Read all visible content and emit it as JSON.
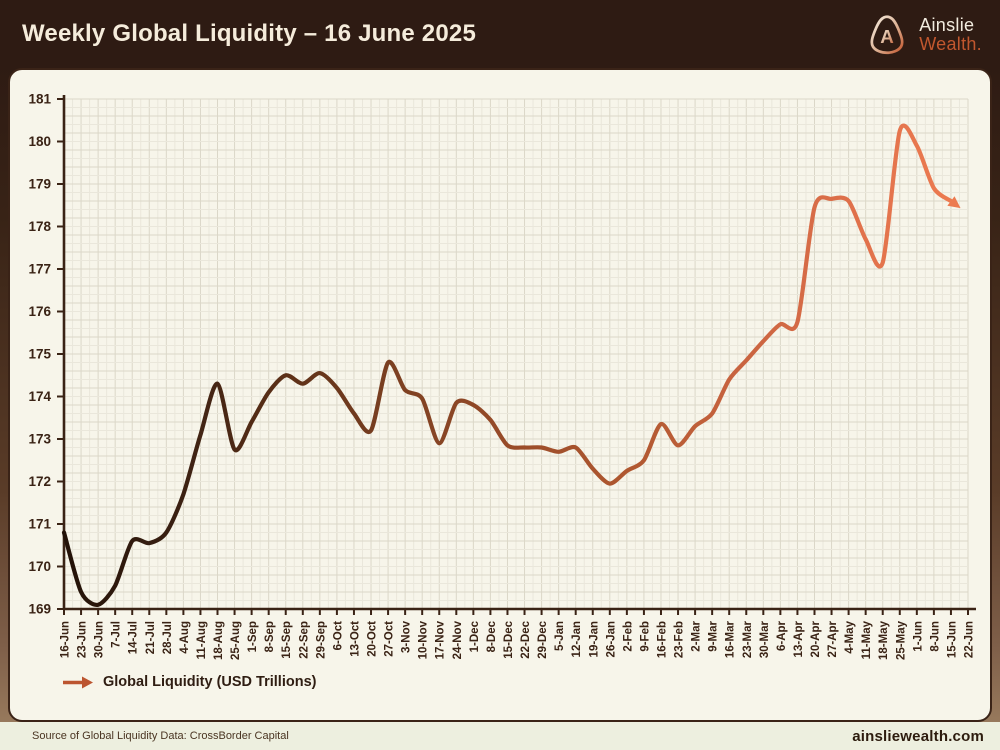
{
  "header": {
    "title": "Weekly Global Liquidity – 16 June 2025",
    "brand_line1": "Ainslie",
    "brand_line2": "Wealth."
  },
  "legend": {
    "label": "Global Liquidity (USD Trillions)"
  },
  "footer": {
    "source": "Source of Global Liquidity Data: CrossBorder Capital",
    "website": "ainsliewealth.com"
  },
  "colors": {
    "header_bg": "#2e1b13",
    "panel_bg": "#f7f5ea",
    "axis": "#3a2315",
    "tick_label": "#3a2315",
    "grid_minor": "#eae7db",
    "grid_major": "#dbd7c8",
    "accent_orange": "#c2572e",
    "line_gradient_stops": [
      "#231208",
      "#3a2012",
      "#5e3118",
      "#7e4122",
      "#9a4c29",
      "#b05830",
      "#c96440",
      "#e0714b",
      "#ee7c51"
    ],
    "arrowhead": "#ec7a4f"
  },
  "chart_data": {
    "type": "line",
    "title": "Weekly Global Liquidity – 16 June 2025",
    "xlabel": "",
    "ylabel": "",
    "ylim": [
      169,
      181
    ],
    "ytick_step": 1,
    "grid": true,
    "legend_position": "bottom-left",
    "end_marker": "arrow",
    "categories": [
      "16-Jun",
      "23-Jun",
      "30-Jun",
      "7-Jul",
      "14-Jul",
      "21-Jul",
      "28-Jul",
      "4-Aug",
      "11-Aug",
      "18-Aug",
      "25-Aug",
      "1-Sep",
      "8-Sep",
      "15-Sep",
      "22-Sep",
      "29-Sep",
      "6-Oct",
      "13-Oct",
      "20-Oct",
      "27-Oct",
      "3-Nov",
      "10-Nov",
      "17-Nov",
      "24-Nov",
      "1-Dec",
      "8-Dec",
      "15-Dec",
      "22-Dec",
      "29-Dec",
      "5-Jan",
      "12-Jan",
      "19-Jan",
      "26-Jan",
      "2-Feb",
      "9-Feb",
      "16-Feb",
      "23-Feb",
      "2-Mar",
      "9-Mar",
      "16-Mar",
      "23-Mar",
      "30-Mar",
      "6-Apr",
      "13-Apr",
      "20-Apr",
      "27-Apr",
      "4-May",
      "11-May",
      "18-May",
      "25-May",
      "1-Jun",
      "8-Jun",
      "15-Jun",
      "22-Jun"
    ],
    "series": [
      {
        "name": "Global Liquidity (USD Trillions)",
        "values": [
          170.8,
          169.4,
          169.1,
          169.55,
          170.6,
          170.55,
          170.8,
          171.7,
          173.1,
          174.3,
          172.75,
          173.4,
          174.1,
          174.5,
          174.3,
          174.55,
          174.2,
          173.6,
          173.2,
          174.8,
          174.15,
          173.95,
          172.9,
          173.85,
          173.8,
          173.45,
          172.85,
          172.8,
          172.8,
          172.7,
          172.8,
          172.3,
          171.95,
          172.25,
          172.5,
          173.35,
          172.85,
          173.3,
          173.6,
          174.4,
          174.85,
          175.3,
          175.7,
          175.75,
          178.45,
          178.65,
          178.6,
          177.7,
          177.15,
          180.25,
          179.9,
          178.9,
          178.6,
          null
        ]
      }
    ]
  }
}
